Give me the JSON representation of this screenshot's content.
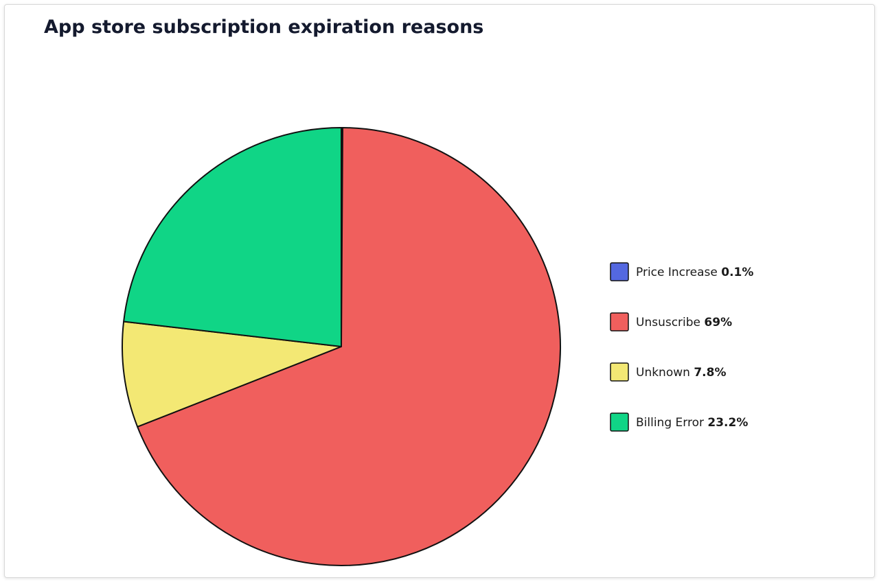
{
  "chart_data": {
    "type": "pie",
    "title": "App store subscription expiration reasons",
    "categories": [
      "Price Increase",
      "Unsuscribe",
      "Unknown",
      "Billing Error"
    ],
    "values": [
      0.1,
      69,
      7.8,
      23.2
    ],
    "value_labels": [
      "0.1%",
      "69%",
      "7.8%",
      "23.2%"
    ],
    "colors": [
      "#5468e0",
      "#f05f5d",
      "#f3e874",
      "#10d586"
    ],
    "legend": "right"
  }
}
